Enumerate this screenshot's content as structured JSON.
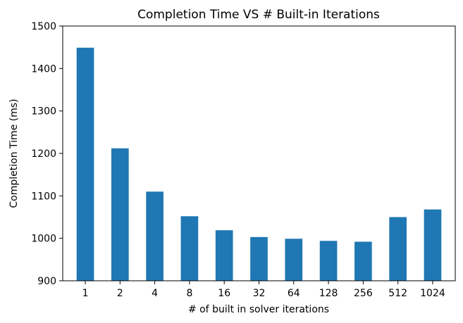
{
  "chart_data": {
    "type": "bar",
    "title": "Completion Time VS # Built-in Iterations",
    "xlabel": "# of built in solver iterations",
    "ylabel": "Completion Time (ms)",
    "categories": [
      "1",
      "2",
      "4",
      "8",
      "16",
      "32",
      "64",
      "128",
      "256",
      "512",
      "1024"
    ],
    "values": [
      1449,
      1212,
      1110,
      1052,
      1019,
      1003,
      999,
      994,
      992,
      1050,
      1068
    ],
    "ylim": [
      900,
      1500
    ],
    "yticks": [
      900,
      1000,
      1100,
      1200,
      1300,
      1400,
      1500
    ],
    "grid": false,
    "legend": "none",
    "bar_color": "#1f77b4"
  }
}
